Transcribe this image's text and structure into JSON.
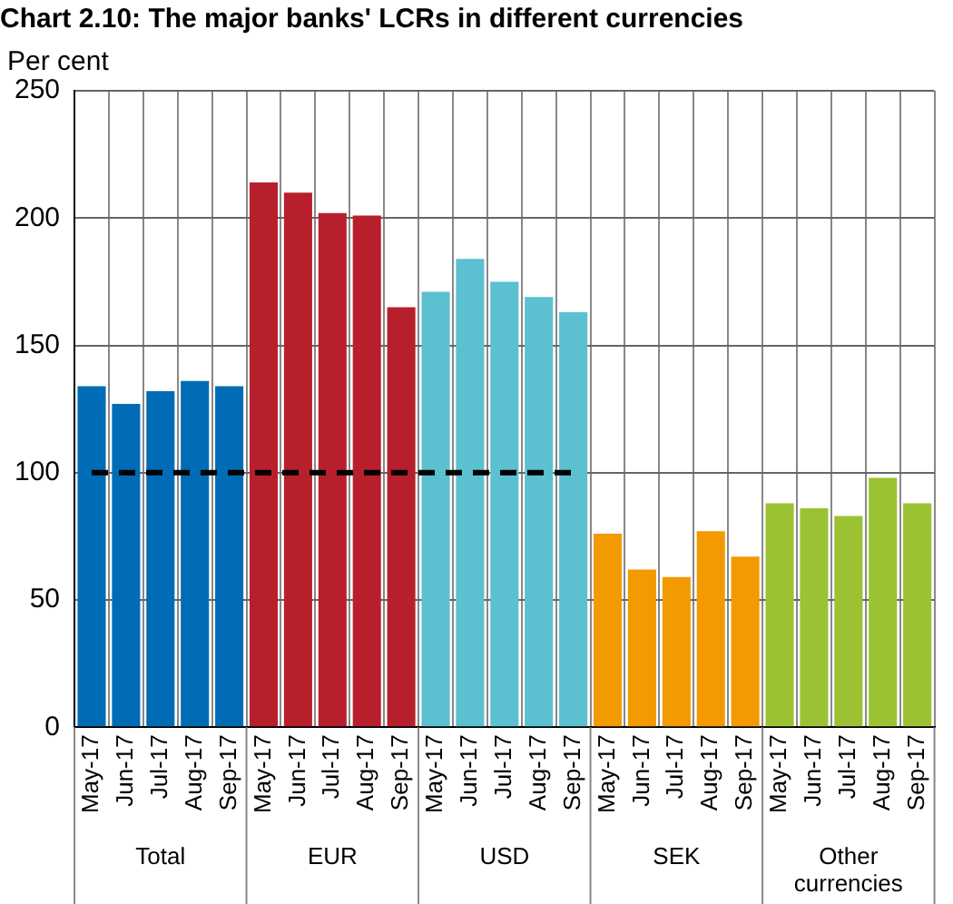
{
  "chart_data": {
    "type": "bar",
    "title": "Chart 2.10: The major banks' LCRs in different currencies",
    "ylabel": "Per cent",
    "categories": [
      "May-17",
      "Jun-17",
      "Jul-17",
      "Aug-17",
      "Sep-17",
      "May-17",
      "Jun-17",
      "Jul-17",
      "Aug-17",
      "Sep-17",
      "May-17",
      "Jun-17",
      "Jul-17",
      "Aug-17",
      "Sep-17",
      "May-17",
      "Jun-17",
      "Jul-17",
      "Aug-17",
      "Sep-17",
      "May-17",
      "Jun-17",
      "Jul-17",
      "Aug-17",
      "Sep-17"
    ],
    "series": [
      {
        "values": [
          134,
          127,
          132,
          136,
          134,
          214,
          210,
          202,
          201,
          165,
          171,
          184,
          175,
          169,
          163,
          76,
          62,
          59,
          77,
          67,
          88,
          86,
          83,
          98,
          88
        ],
        "colors": [
          "#006cb6",
          "#006cb6",
          "#006cb6",
          "#006cb6",
          "#006cb6",
          "#b81f2d",
          "#b81f2d",
          "#b81f2d",
          "#b81f2d",
          "#b81f2d",
          "#5bc0d0",
          "#5bc0d0",
          "#5bc0d0",
          "#5bc0d0",
          "#5bc0d0",
          "#f39a00",
          "#f39a00",
          "#f39a00",
          "#f39a00",
          "#f39a00",
          "#9bc232",
          "#9bc232",
          "#9bc232",
          "#9bc232",
          "#9bc232"
        ]
      },
      {
        "type": "line",
        "color": "#000000",
        "line_style": "dashed",
        "marker": "none",
        "values": [
          100,
          100,
          100,
          100,
          100,
          100,
          100,
          100,
          100,
          100,
          100,
          100,
          100,
          100,
          100,
          null,
          null,
          null,
          null,
          null,
          null,
          null,
          null,
          null,
          null
        ]
      }
    ],
    "annotations": [
      "Total",
      "EUR",
      "USD",
      "SEK",
      "Other currencies"
    ],
    "ylim": [
      0,
      250
    ],
    "yticks": [
      0,
      50,
      100,
      150,
      200,
      250
    ],
    "grid": true,
    "legend": false
  }
}
